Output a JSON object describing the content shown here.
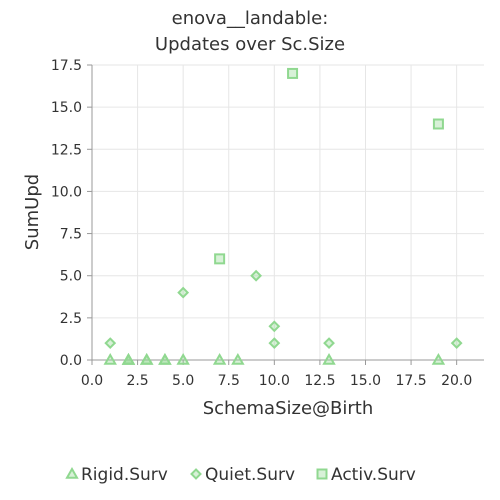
{
  "chart_data": {
    "type": "scatter",
    "title_lines": [
      "enova__landable:",
      "Updates over Sc.Size"
    ],
    "xlabel": "SchemaSize@Birth",
    "ylabel": "SumUpd",
    "xlim": [
      0,
      21.5
    ],
    "ylim": [
      0,
      17.5
    ],
    "x_ticks": [
      0.0,
      2.5,
      5.0,
      7.5,
      10.0,
      12.5,
      15.0,
      17.5,
      20.0
    ],
    "x_tick_labels": [
      "0.0",
      "2.5",
      "5.0",
      "7.5",
      "10.0",
      "12.5",
      "15.0",
      "17.5",
      "20.0"
    ],
    "y_ticks": [
      0.0,
      2.5,
      5.0,
      7.5,
      10.0,
      12.5,
      15.0,
      17.5
    ],
    "y_tick_labels": [
      "0.0",
      "2.5",
      "5.0",
      "7.5",
      "10.0",
      "12.5",
      "15.0",
      "17.5"
    ],
    "grid": true,
    "legend_position": "bottom",
    "series": [
      {
        "name": "Rigid.Surv",
        "marker": "triangle",
        "color": "#90d890",
        "points": [
          {
            "x": 1,
            "y": 0
          },
          {
            "x": 2,
            "y": 0
          },
          {
            "x": 2,
            "y": 0
          },
          {
            "x": 2,
            "y": 0
          },
          {
            "x": 3,
            "y": 0
          },
          {
            "x": 3,
            "y": 0
          },
          {
            "x": 4,
            "y": 0
          },
          {
            "x": 4,
            "y": 0
          },
          {
            "x": 5,
            "y": 0
          },
          {
            "x": 7,
            "y": 0
          },
          {
            "x": 8,
            "y": 0
          },
          {
            "x": 13,
            "y": 0
          },
          {
            "x": 19,
            "y": 0
          }
        ]
      },
      {
        "name": "Quiet.Surv",
        "marker": "diamond",
        "color": "#90d890",
        "points": [
          {
            "x": 1,
            "y": 1
          },
          {
            "x": 5,
            "y": 4
          },
          {
            "x": 9,
            "y": 5
          },
          {
            "x": 10,
            "y": 2
          },
          {
            "x": 10,
            "y": 1
          },
          {
            "x": 13,
            "y": 1
          },
          {
            "x": 20,
            "y": 1
          }
        ]
      },
      {
        "name": "Activ.Surv",
        "marker": "square",
        "color": "#90d890",
        "points": [
          {
            "x": 7,
            "y": 6
          },
          {
            "x": 11,
            "y": 17
          },
          {
            "x": 19,
            "y": 14
          }
        ]
      }
    ]
  }
}
